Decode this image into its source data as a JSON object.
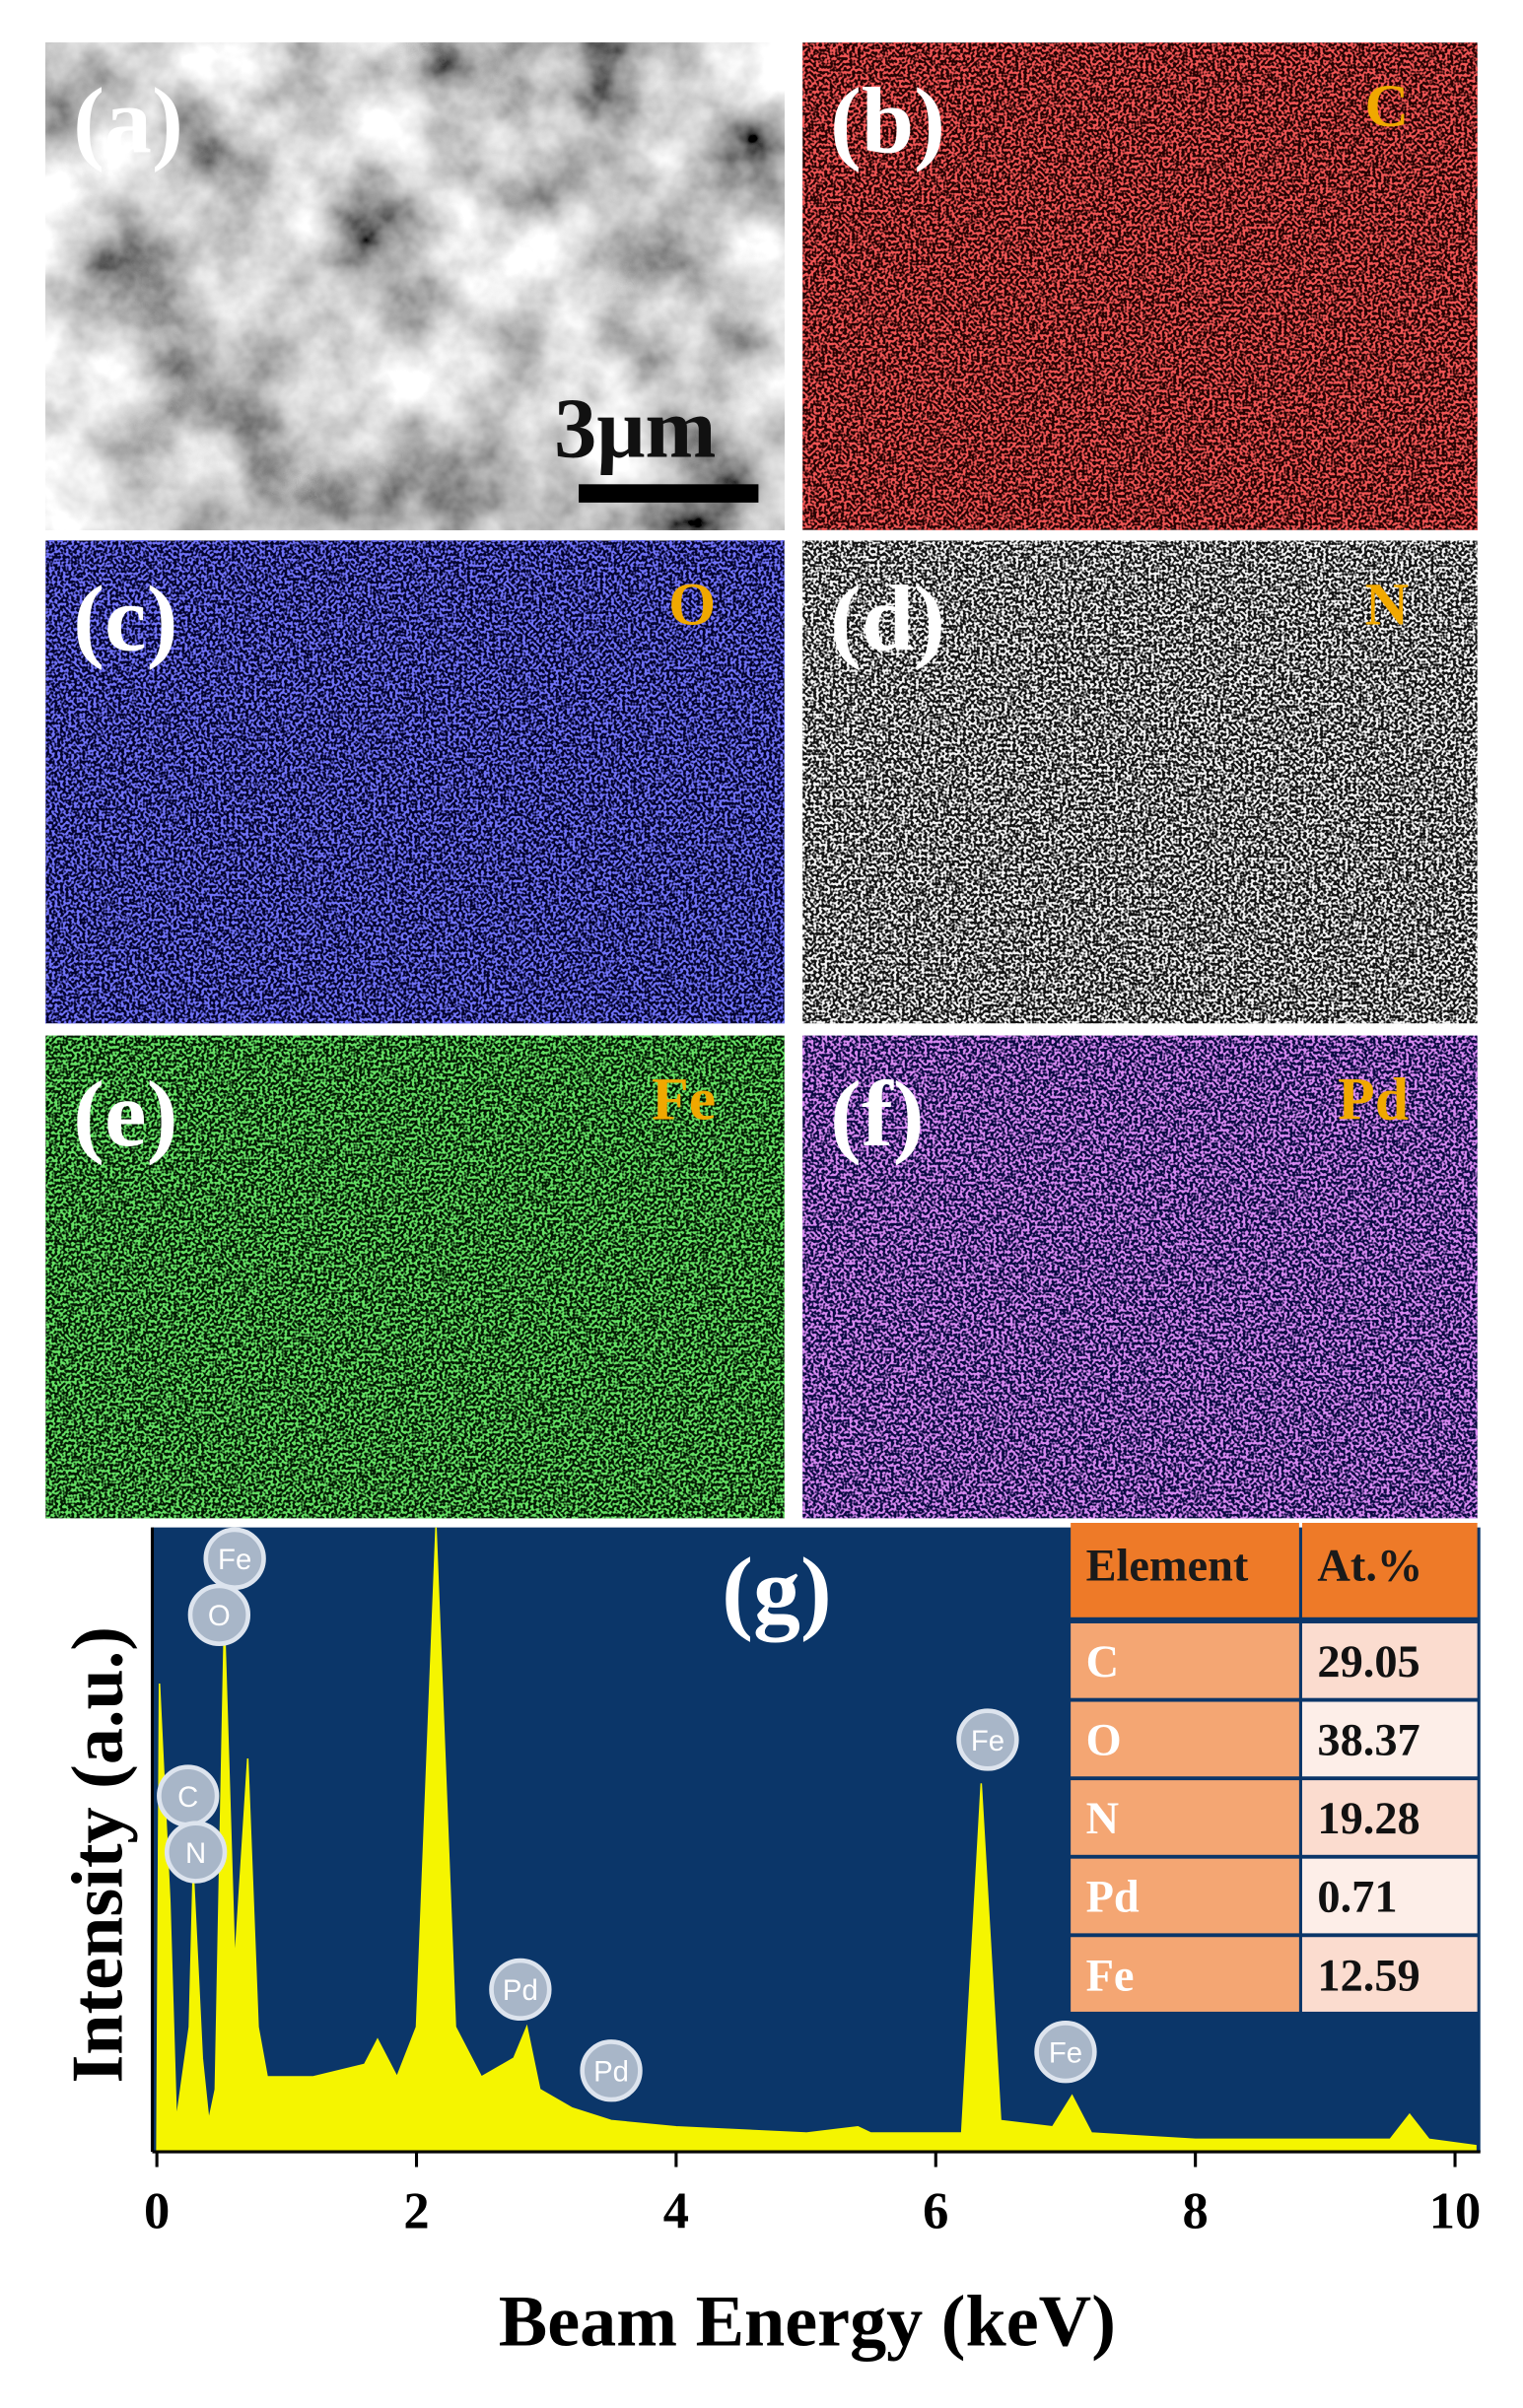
{
  "panels": [
    {
      "label": "(a)",
      "scale_bar": "3μm"
    },
    {
      "label": "(b)",
      "element": "C",
      "color": "#e01818"
    },
    {
      "label": "(c)",
      "element": "O",
      "color": "#2a2cf0"
    },
    {
      "label": "(d)",
      "element": "N",
      "color": "#e8e8e8"
    },
    {
      "label": "(e)",
      "element": "Fe",
      "color": "#22c222"
    },
    {
      "label": "(f)",
      "element": "Pd",
      "color": "#b040e0"
    }
  ],
  "chart_data": {
    "type": "area",
    "title": "(g)",
    "x_label": "Beam Energy (keV)",
    "y_label": "Intensity (a.u.)",
    "x": [
      0.0,
      0.02,
      0.1,
      0.15,
      0.25,
      0.28,
      0.35,
      0.4,
      0.45,
      0.52,
      0.6,
      0.7,
      0.78,
      0.85,
      1.2,
      1.6,
      1.7,
      1.85,
      2.0,
      2.15,
      2.3,
      2.5,
      2.75,
      2.85,
      2.95,
      3.2,
      3.5,
      4.0,
      5.0,
      5.4,
      5.5,
      6.2,
      6.35,
      6.5,
      6.9,
      7.05,
      7.2,
      8.0,
      9.5,
      9.65,
      9.8,
      10.16
    ],
    "values": [
      0,
      75,
      40,
      5,
      20,
      45,
      15,
      5,
      10,
      85,
      30,
      63,
      20,
      12,
      12,
      14,
      18,
      12,
      20,
      100,
      20,
      12,
      15,
      20,
      10,
      7,
      5,
      4,
      3,
      4,
      3,
      3,
      59,
      5,
      4,
      9,
      3,
      2,
      2,
      6,
      2,
      1
    ],
    "color": "#f5f500",
    "background": "#0b3669",
    "xlim": [
      0,
      10.16
    ],
    "ylim": [
      0,
      100
    ],
    "xticks": [
      0,
      2,
      4,
      6,
      8,
      10
    ],
    "peak_labels": [
      {
        "label": "Fe",
        "x": 0.6,
        "y": 95
      },
      {
        "label": "O",
        "x": 0.48,
        "y": 86
      },
      {
        "label": "C",
        "x": 0.24,
        "y": 57
      },
      {
        "label": "N",
        "x": 0.3,
        "y": 48
      },
      {
        "label": "Pd",
        "x": 2.8,
        "y": 26
      },
      {
        "label": "Pd",
        "x": 3.5,
        "y": 13
      },
      {
        "label": "Fe",
        "x": 6.4,
        "y": 66
      },
      {
        "label": "Fe",
        "x": 7.0,
        "y": 16
      }
    ]
  },
  "table": {
    "header": [
      "Element",
      "At.%"
    ],
    "rows": [
      [
        "C",
        "29.05"
      ],
      [
        "O",
        "38.37"
      ],
      [
        "N",
        "19.28"
      ],
      [
        "Pd",
        "0.71"
      ],
      [
        "Fe",
        "12.59"
      ]
    ]
  }
}
